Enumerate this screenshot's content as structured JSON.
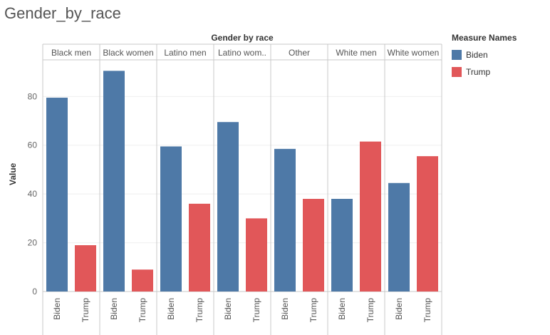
{
  "page": {
    "title": "Gender_by_race"
  },
  "chart_data": {
    "type": "bar",
    "title": "Gender by race",
    "xlabel": "",
    "ylabel": "Value",
    "ylim": [
      0,
      95
    ],
    "yticks": [
      0,
      20,
      40,
      60,
      80
    ],
    "grid": true,
    "legend": {
      "title": "Measure Names",
      "position": "right"
    },
    "measures": [
      "Biden",
      "Trump"
    ],
    "colors": {
      "Biden": "#4e79a7",
      "Trump": "#e15759"
    },
    "categories": [
      "Black men",
      "Black women",
      "Latino men",
      "Latino wom..",
      "Other",
      "White men",
      "White women"
    ],
    "series": [
      {
        "name": "Biden",
        "values": [
          79.5,
          90.5,
          59.5,
          69.5,
          58.5,
          38,
          44.5
        ]
      },
      {
        "name": "Trump",
        "values": [
          19,
          9,
          36,
          30,
          38,
          61.5,
          55.5
        ]
      }
    ]
  }
}
